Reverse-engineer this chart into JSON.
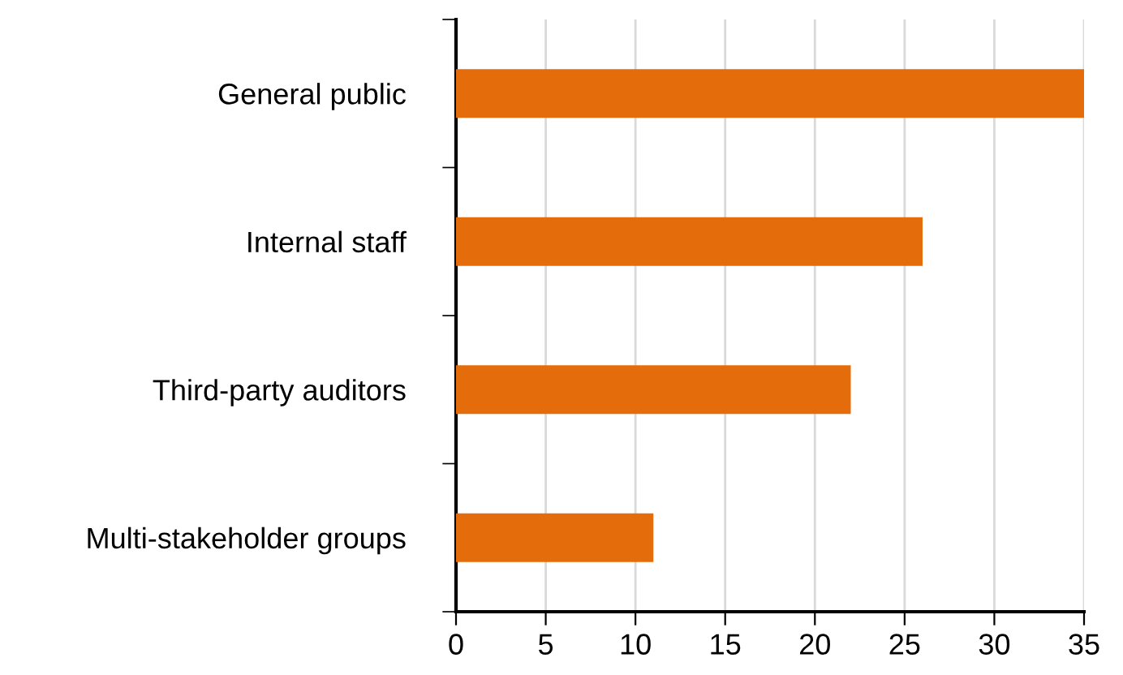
{
  "chart_data": {
    "type": "bar",
    "orientation": "horizontal",
    "categories": [
      "General public",
      "Internal staff",
      "Third-party auditors",
      "Multi-stakeholder groups"
    ],
    "values": [
      35,
      26,
      22,
      11
    ],
    "color": "#e46c0a",
    "xlim": [
      0,
      35
    ],
    "xticks": [
      0,
      5,
      10,
      15,
      20,
      25,
      30,
      35
    ],
    "grid": "x",
    "legend": false
  }
}
